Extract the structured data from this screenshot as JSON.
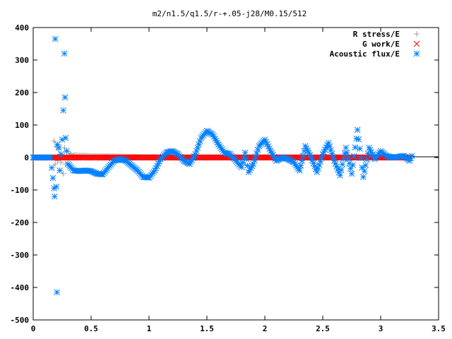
{
  "chart_data": {
    "type": "scatter",
    "title": "m2/n1.5/q1.5/r-+.05-j28/M0.15/512",
    "xlabel": "",
    "ylabel": "",
    "xlim": [
      0,
      3.5
    ],
    "ylim": [
      -500,
      400
    ],
    "x_ticks": [
      "0",
      "0.5",
      "1",
      "1.5",
      "2",
      "2.5",
      "3",
      "3.5"
    ],
    "y_ticks": [
      "400",
      "300",
      "200",
      "100",
      "0",
      "-100",
      "-200",
      "-300",
      "-400",
      "-500"
    ],
    "grid": false,
    "legend_position": "top-right",
    "series": [
      {
        "name": "R stress/E",
        "marker": "plus",
        "color": "#a0a0a0",
        "points": [
          [
            0.18,
            50
          ],
          [
            0.19,
            -20
          ],
          [
            0.2,
            35
          ],
          [
            0.21,
            -10
          ],
          [
            0.22,
            25
          ],
          [
            0.23,
            10
          ],
          [
            0.24,
            -15
          ],
          [
            0.25,
            5
          ],
          [
            0.26,
            -50
          ],
          [
            0.27,
            30
          ],
          [
            0.28,
            -20
          ],
          [
            0.29,
            18
          ],
          [
            0.3,
            -8
          ],
          [
            0.32,
            12
          ],
          [
            0.34,
            5
          ],
          [
            0.36,
            8
          ],
          [
            0.4,
            6
          ],
          [
            0.45,
            6
          ],
          [
            0.5,
            5
          ],
          [
            0.6,
            4
          ],
          [
            0.7,
            4
          ],
          [
            0.8,
            3
          ],
          [
            0.9,
            2
          ],
          [
            1.0,
            2
          ],
          [
            1.2,
            1
          ],
          [
            1.5,
            1
          ],
          [
            2.0,
            1
          ],
          [
            2.5,
            1
          ],
          [
            3.0,
            1
          ],
          [
            3.25,
            1
          ]
        ]
      },
      {
        "name": "G work/E",
        "marker": "cross",
        "color": "#ff0000",
        "points": [
          [
            0.0,
            0
          ],
          [
            0.5,
            0
          ],
          [
            1.0,
            0
          ],
          [
            1.5,
            0
          ],
          [
            2.0,
            0
          ],
          [
            2.5,
            0
          ],
          [
            3.0,
            0
          ],
          [
            3.25,
            0
          ]
        ]
      },
      {
        "name": "Acoustic flux/E",
        "marker": "star",
        "color": "#0080ff",
        "points": [
          [
            0.0,
            0
          ],
          [
            0.05,
            0
          ],
          [
            0.1,
            0
          ],
          [
            0.15,
            0
          ],
          [
            0.18,
            -95
          ],
          [
            0.185,
            -120
          ],
          [
            0.19,
            365
          ],
          [
            0.2,
            -90
          ],
          [
            0.205,
            -415
          ],
          [
            0.21,
            40
          ],
          [
            0.22,
            30
          ],
          [
            0.23,
            -40
          ],
          [
            0.24,
            10
          ],
          [
            0.25,
            55
          ],
          [
            0.26,
            145
          ],
          [
            0.27,
            320
          ],
          [
            0.275,
            185
          ],
          [
            0.28,
            60
          ],
          [
            0.3,
            -20
          ],
          [
            0.35,
            -40
          ],
          [
            0.4,
            -42
          ],
          [
            0.45,
            -40
          ],
          [
            0.5,
            -42
          ],
          [
            0.55,
            -50
          ],
          [
            0.6,
            -52
          ],
          [
            0.65,
            -30
          ],
          [
            0.7,
            -10
          ],
          [
            0.75,
            -5
          ],
          [
            0.8,
            -10
          ],
          [
            0.85,
            -25
          ],
          [
            0.9,
            -40
          ],
          [
            0.95,
            -60
          ],
          [
            1.0,
            -62
          ],
          [
            1.05,
            -40
          ],
          [
            1.1,
            -5
          ],
          [
            1.15,
            15
          ],
          [
            1.2,
            20
          ],
          [
            1.25,
            10
          ],
          [
            1.3,
            -10
          ],
          [
            1.35,
            -20
          ],
          [
            1.4,
            10
          ],
          [
            1.45,
            60
          ],
          [
            1.5,
            82
          ],
          [
            1.55,
            70
          ],
          [
            1.6,
            40
          ],
          [
            1.65,
            15
          ],
          [
            1.7,
            10
          ],
          [
            1.75,
            -10
          ],
          [
            1.8,
            -30
          ],
          [
            1.83,
            15
          ],
          [
            1.86,
            -45
          ],
          [
            1.9,
            -20
          ],
          [
            1.95,
            35
          ],
          [
            2.0,
            55
          ],
          [
            2.05,
            20
          ],
          [
            2.1,
            -10
          ],
          [
            2.15,
            0
          ],
          [
            2.2,
            -5
          ],
          [
            2.25,
            -15
          ],
          [
            2.3,
            -40
          ],
          [
            2.35,
            35
          ],
          [
            2.4,
            0
          ],
          [
            2.45,
            -45
          ],
          [
            2.5,
            10
          ],
          [
            2.55,
            45
          ],
          [
            2.6,
            -10
          ],
          [
            2.65,
            -55
          ],
          [
            2.7,
            30
          ],
          [
            2.75,
            -50
          ],
          [
            2.8,
            85
          ],
          [
            2.85,
            -60
          ],
          [
            2.9,
            30
          ],
          [
            2.95,
            -5
          ],
          [
            3.0,
            20
          ],
          [
            3.05,
            5
          ],
          [
            3.1,
            0
          ],
          [
            3.15,
            2
          ],
          [
            3.2,
            5
          ],
          [
            3.25,
            -10
          ],
          [
            3.27,
            5
          ]
        ]
      }
    ]
  }
}
